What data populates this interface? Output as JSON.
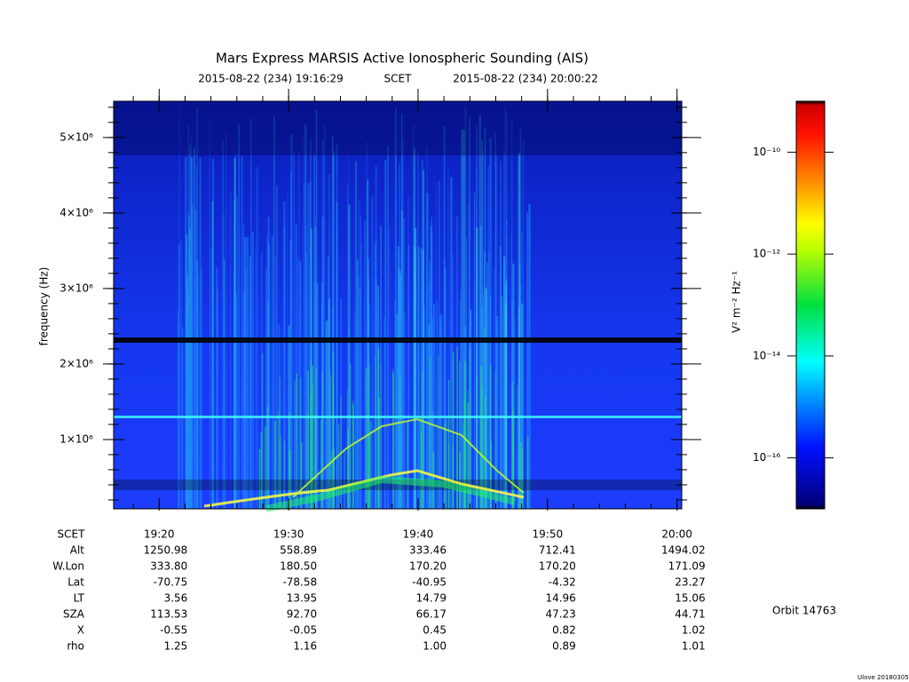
{
  "chart_data": {
    "type": "spectrogram",
    "title": "Mars Express MARSIS Active Ionospheric Sounding (AIS)",
    "start_label": "2015-08-22 (234) 19:16:29",
    "time_system": "SCET",
    "end_label": "2015-08-22 (234) 20:00:22",
    "ylabel": "frequency (Hz)",
    "xlim": [
      "19:16:29",
      "20:00:22"
    ],
    "xticks": [
      "19:20",
      "19:30",
      "19:40",
      "19:50",
      "20:00"
    ],
    "ylim": [
      82000,
      5480000
    ],
    "yticks": [
      {
        "value": 1000000,
        "label": "1×10⁶"
      },
      {
        "value": 2000000,
        "label": "2×10⁶"
      },
      {
        "value": 3000000,
        "label": "3×10⁶"
      },
      {
        "value": 4000000,
        "label": "4×10⁶"
      },
      {
        "value": 5000000,
        "label": "5×10⁶"
      }
    ],
    "colorbar": {
      "label": "V² m⁻² Hz⁻¹",
      "log": true,
      "clim": [
        1e-17,
        1e-09
      ],
      "ticks": [
        {
          "value": 1e-10,
          "label": "10⁻¹⁰"
        },
        {
          "value": 1e-12,
          "label": "10⁻¹²"
        },
        {
          "value": 1e-14,
          "label": "10⁻¹⁴"
        },
        {
          "value": 1e-16,
          "label": "10⁻¹⁶"
        }
      ]
    },
    "ephemeris": {
      "time_label": "SCET",
      "rows": [
        {
          "label": "Alt",
          "values": [
            "1250.98",
            "558.89",
            "333.46",
            "712.41",
            "1494.02"
          ]
        },
        {
          "label": "W.Lon",
          "values": [
            "333.80",
            "180.50",
            "170.20",
            "170.20",
            "171.09"
          ]
        },
        {
          "label": "Lat",
          "values": [
            "-70.75",
            "-78.58",
            "-40.95",
            "-4.32",
            "23.27"
          ]
        },
        {
          "label": "LT",
          "values": [
            "3.56",
            "13.95",
            "14.79",
            "14.96",
            "15.06"
          ]
        },
        {
          "label": "SZA",
          "values": [
            "113.53",
            "92.70",
            "66.17",
            "47.23",
            "44.71"
          ]
        },
        {
          "label": "X",
          "values": [
            "-0.55",
            "-0.05",
            "0.45",
            "0.82",
            "1.02"
          ]
        },
        {
          "label": "rho",
          "values": [
            "1.25",
            "1.16",
            "1.00",
            "0.89",
            "1.01"
          ]
        }
      ]
    },
    "orbit": "Orbit 14763",
    "footer": "Ulove 20180305"
  }
}
